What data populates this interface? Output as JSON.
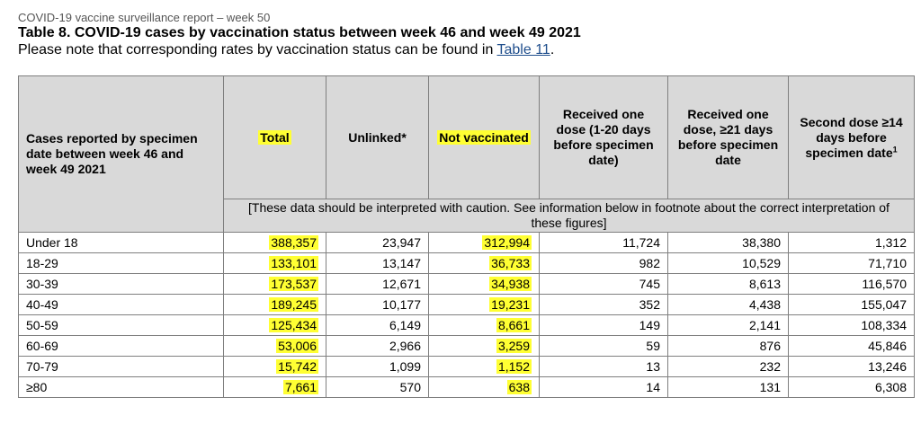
{
  "report_header": "COVID-19 vaccine surveillance report – week 50",
  "table_title": "Table 8. COVID-19 cases by vaccination status between week 46 and week 49 2021",
  "note": {
    "prefix": "Please note that corresponding rates by vaccination status can be found in ",
    "link": "Table 11",
    "suffix": "."
  },
  "colors": {
    "header_bg": "#d9d9d9",
    "highlight": "#ffff33",
    "link": "#1f4e8c"
  },
  "columns": {
    "age": "Cases reported by specimen date between week 46 and week 49 2021",
    "total": "Total",
    "unlinked": "Unlinked*",
    "not_vaccinated": "Not vaccinated",
    "one_dose_1_20": "Received one dose (1-20 days before specimen date)",
    "one_dose_21": "Received one dose, ≥21 days before specimen date",
    "second_dose": "Second dose ≥14 days before specimen date",
    "second_dose_sup": "1"
  },
  "caution": "[These data should be interpreted with caution. See information below in footnote about the correct interpretation of these figures]",
  "rows": [
    {
      "age": "Under 18",
      "total": "388,357",
      "unlinked": "23,947",
      "not_vaccinated": "312,994",
      "one_dose_1_20": "11,724",
      "one_dose_21": "38,380",
      "second_dose": "1,312"
    },
    {
      "age": "18-29",
      "total": "133,101",
      "unlinked": "13,147",
      "not_vaccinated": "36,733",
      "one_dose_1_20": "982",
      "one_dose_21": "10,529",
      "second_dose": "71,710"
    },
    {
      "age": "30-39",
      "total": "173,537",
      "unlinked": "12,671",
      "not_vaccinated": "34,938",
      "one_dose_1_20": "745",
      "one_dose_21": "8,613",
      "second_dose": "116,570"
    },
    {
      "age": "40-49",
      "total": "189,245",
      "unlinked": "10,177",
      "not_vaccinated": "19,231",
      "one_dose_1_20": "352",
      "one_dose_21": "4,438",
      "second_dose": "155,047"
    },
    {
      "age": "50-59",
      "total": "125,434",
      "unlinked": "6,149",
      "not_vaccinated": "8,661",
      "one_dose_1_20": "149",
      "one_dose_21": "2,141",
      "second_dose": "108,334"
    },
    {
      "age": "60-69",
      "total": "53,006",
      "unlinked": "2,966",
      "not_vaccinated": "3,259",
      "one_dose_1_20": "59",
      "one_dose_21": "876",
      "second_dose": "45,846"
    },
    {
      "age": "70-79",
      "total": "15,742",
      "unlinked": "1,099",
      "not_vaccinated": "1,152",
      "one_dose_1_20": "13",
      "one_dose_21": "232",
      "second_dose": "13,246"
    },
    {
      "age": "≥80",
      "total": "7,661",
      "unlinked": "570",
      "not_vaccinated": "638",
      "one_dose_1_20": "14",
      "one_dose_21": "131",
      "second_dose": "6,308"
    }
  ]
}
